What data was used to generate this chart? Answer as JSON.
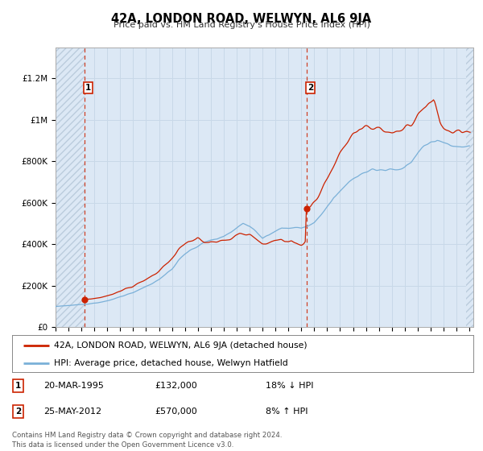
{
  "title": "42A, LONDON ROAD, WELWYN, AL6 9JA",
  "subtitle": "Price paid vs. HM Land Registry's House Price Index (HPI)",
  "bg_color": "#dce8f5",
  "plot_bg_color": "#dce8f5",
  "hpi_color": "#7ab0d8",
  "price_color": "#cc2200",
  "ylabel_values": [
    0,
    200000,
    400000,
    600000,
    800000,
    1000000,
    1200000
  ],
  "ylabel_texts": [
    "£0",
    "£200K",
    "£400K",
    "£600K",
    "£800K",
    "£1M",
    "£1.2M"
  ],
  "ylim": [
    0,
    1350000
  ],
  "transaction1_x": 1995.22,
  "transaction1_y": 132000,
  "transaction2_x": 2012.39,
  "transaction2_y": 570000,
  "legend_line1": "42A, LONDON ROAD, WELWYN, AL6 9JA (detached house)",
  "legend_line2": "HPI: Average price, detached house, Welwyn Hatfield",
  "footer1": "Contains HM Land Registry data © Crown copyright and database right 2024.",
  "footer2": "This data is licensed under the Open Government Licence v3.0.",
  "xmin": 1993.0,
  "xmax": 2025.3,
  "grid_color": "#c8d8e8",
  "hatch_color": "#bbccdd"
}
